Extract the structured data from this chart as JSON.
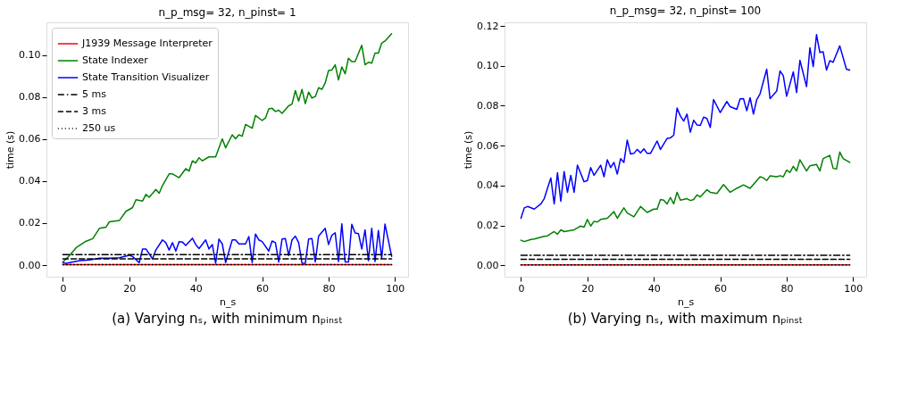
{
  "chart_data": [
    {
      "type": "line",
      "title": "n_p_msg= 32, n_pinst= 1",
      "xlabel": "n_s",
      "ylabel": "time (s)",
      "legend": "top left",
      "grid": false,
      "xlim": [
        -4.95,
        103.95
      ],
      "xticks": [
        0,
        20,
        40,
        60,
        80,
        100
      ],
      "ylim": [
        -0.0055,
        0.1155
      ],
      "yticks": [
        {
          "value": 0,
          "label": "0.00"
        },
        {
          "value": 0.02,
          "label": "0.02"
        },
        {
          "value": 0.04,
          "label": "0.04"
        },
        {
          "value": 0.06,
          "label": "0.06"
        },
        {
          "value": 0.08,
          "label": "0.08"
        },
        {
          "value": 0.1,
          "label": "0.10"
        }
      ],
      "annotations": [
        "(a) Varying nₛ, with minimum nₚᵢₙₛₜ"
      ],
      "series": [
        {
          "name": "J1939 Message Interpreter",
          "color": "#ff0000",
          "line_style": "solid",
          "x": [
            0,
            99
          ],
          "values": [
            0.0002,
            0.0002
          ]
        },
        {
          "name": "State Indexer",
          "color": "#008000",
          "line_style": "solid",
          "x": [
            0,
            2,
            4,
            7,
            9,
            11,
            13,
            14,
            17,
            19,
            21,
            22,
            24,
            25,
            26,
            28,
            29,
            30,
            32,
            33,
            35,
            37,
            38,
            39,
            40,
            41,
            42,
            44,
            46,
            48,
            49,
            51,
            52,
            53,
            54,
            55,
            57,
            58,
            60,
            61,
            62,
            63,
            64,
            65,
            66,
            68,
            69,
            70,
            71,
            72,
            73,
            74,
            75,
            76,
            77,
            78,
            79,
            80,
            81,
            82,
            83,
            84,
            85,
            86,
            87,
            88,
            90,
            91,
            92,
            93,
            94,
            95,
            96,
            97,
            99
          ],
          "values": [
            0.0015,
            0.0046,
            0.0083,
            0.0114,
            0.0126,
            0.0175,
            0.0181,
            0.0206,
            0.0212,
            0.0256,
            0.0274,
            0.0311,
            0.0305,
            0.0336,
            0.0323,
            0.036,
            0.0342,
            0.0379,
            0.0434,
            0.0434,
            0.0416,
            0.0459,
            0.0447,
            0.0496,
            0.0486,
            0.0511,
            0.0496,
            0.0515,
            0.0515,
            0.0601,
            0.0558,
            0.062,
            0.0601,
            0.062,
            0.0613,
            0.0669,
            0.0651,
            0.0712,
            0.0688,
            0.07,
            0.0743,
            0.0746,
            0.0731,
            0.0737,
            0.0722,
            0.0758,
            0.0766,
            0.083,
            0.078,
            0.0836,
            0.0768,
            0.0823,
            0.0795,
            0.0802,
            0.0844,
            0.0836,
            0.0867,
            0.0926,
            0.0928,
            0.0953,
            0.0881,
            0.0943,
            0.091,
            0.0984,
            0.0968,
            0.0968,
            0.1046,
            0.0953,
            0.0965,
            0.0961,
            0.1009,
            0.1009,
            0.1056,
            0.1066,
            0.1101
          ]
        },
        {
          "name": "State Transition Visualizer",
          "color": "#0000ff",
          "line_style": "solid",
          "x": [
            0,
            1,
            5,
            8,
            11,
            14,
            17,
            20,
            21,
            23,
            24,
            25,
            27,
            28,
            30,
            31,
            32,
            33,
            34,
            35,
            36,
            37,
            39,
            40,
            41,
            43,
            44,
            45,
            46,
            47,
            48,
            49,
            51,
            52,
            53,
            55,
            56,
            57,
            58,
            59,
            60,
            62,
            63,
            64,
            65,
            66,
            67,
            68,
            69,
            70,
            71,
            72,
            73,
            74,
            75,
            76,
            77,
            79,
            80,
            81,
            82,
            83,
            84,
            85,
            86,
            87,
            88,
            89,
            90,
            91,
            92,
            93,
            94,
            95,
            96,
            97,
            99
          ],
          "values": [
            0.0012,
            0.0009,
            0.0021,
            0.0025,
            0.0033,
            0.0033,
            0.0035,
            0.0047,
            0.0041,
            0.0012,
            0.0077,
            0.0077,
            0.003,
            0.0072,
            0.012,
            0.0107,
            0.0072,
            0.0107,
            0.0067,
            0.0112,
            0.011,
            0.0094,
            0.0128,
            0.0098,
            0.0079,
            0.012,
            0.0077,
            0.0098,
            0.0009,
            0.0124,
            0.0101,
            0.0012,
            0.012,
            0.012,
            0.0101,
            0.0101,
            0.0136,
            0.0012,
            0.0148,
            0.012,
            0.0112,
            0.0067,
            0.0115,
            0.0107,
            0.0015,
            0.0124,
            0.0126,
            0.0046,
            0.012,
            0.0138,
            0.0107,
            0.0009,
            0.0009,
            0.0124,
            0.0126,
            0.0015,
            0.0138,
            0.0175,
            0.0098,
            0.0142,
            0.0154,
            0.0017,
            0.0197,
            0.0015,
            0.0015,
            0.0194,
            0.0153,
            0.015,
            0.0077,
            0.0168,
            0.0021,
            0.0175,
            0.0017,
            0.0165,
            0.0033,
            0.0195,
            0.0042
          ]
        },
        {
          "name": "5 ms",
          "color": "#000000",
          "line_style": "dashdot",
          "x": [
            0,
            99
          ],
          "values": [
            0.005,
            0.005
          ]
        },
        {
          "name": "3 ms",
          "color": "#000000",
          "line_style": "dashed",
          "x": [
            0,
            99
          ],
          "values": [
            0.003,
            0.003
          ]
        },
        {
          "name": "250 us",
          "color": "#000000",
          "line_style": "dotted",
          "x": [
            0,
            99
          ],
          "values": [
            0.00025,
            0.00025
          ]
        }
      ]
    },
    {
      "type": "line",
      "title": "n_p_msg= 32, n_pinst= 100",
      "xlabel": "n_s",
      "ylabel": "time (s)",
      "legend": "top left",
      "grid": false,
      "xlim": [
        -4.95,
        103.95
      ],
      "xticks": [
        0,
        20,
        40,
        60,
        80,
        100
      ],
      "ylim": [
        -0.0057,
        0.1218
      ],
      "yticks": [
        {
          "value": 0,
          "label": "0.00"
        },
        {
          "value": 0.02,
          "label": "0.02"
        },
        {
          "value": 0.04,
          "label": "0.04"
        },
        {
          "value": 0.06,
          "label": "0.06"
        },
        {
          "value": 0.08,
          "label": "0.08"
        },
        {
          "value": 0.1,
          "label": "0.10"
        },
        {
          "value": 0.12,
          "label": "0.12"
        }
      ],
      "annotations": [
        "(b) Varying nₛ, with maximum nₚᵢₙₛₜ"
      ],
      "series": [
        {
          "name": "J1939 Message Interpreter",
          "color": "#ff0000",
          "line_style": "solid",
          "x": [
            0,
            99
          ],
          "values": [
            0.0002,
            0.0002
          ]
        },
        {
          "name": "State Indexer",
          "color": "#008000",
          "line_style": "solid",
          "x": [
            0,
            1,
            3,
            4,
            7,
            8,
            10,
            11,
            12,
            13,
            16,
            18,
            19,
            20,
            21,
            22,
            23,
            24,
            26,
            28,
            29,
            31,
            32,
            34,
            36,
            38,
            40,
            41,
            42,
            43,
            44,
            45,
            46,
            47,
            48,
            50,
            51,
            52,
            53,
            54,
            56,
            57,
            59,
            61,
            63,
            65,
            67,
            69,
            72,
            73,
            74,
            75,
            77,
            78,
            79,
            80,
            81,
            82,
            83,
            84,
            86,
            87,
            89,
            90,
            91,
            93,
            94,
            95,
            96,
            97,
            99
          ],
          "values": [
            0.0126,
            0.0119,
            0.013,
            0.0132,
            0.0145,
            0.0148,
            0.0169,
            0.0156,
            0.0178,
            0.0169,
            0.0178,
            0.0197,
            0.0191,
            0.023,
            0.0197,
            0.0221,
            0.0217,
            0.023,
            0.0236,
            0.0269,
            0.0236,
            0.0288,
            0.0262,
            0.0243,
            0.0295,
            0.0265,
            0.0282,
            0.0282,
            0.033,
            0.0327,
            0.0308,
            0.034,
            0.0308,
            0.0366,
            0.0327,
            0.0334,
            0.0325,
            0.033,
            0.0353,
            0.0343,
            0.0379,
            0.0366,
            0.036,
            0.0405,
            0.0366,
            0.0386,
            0.0403,
            0.0386,
            0.0444,
            0.0438,
            0.0425,
            0.0448,
            0.0444,
            0.0449,
            0.0444,
            0.0477,
            0.0466,
            0.0496,
            0.0473,
            0.0529,
            0.0473,
            0.0499,
            0.0506,
            0.0473,
            0.0535,
            0.0551,
            0.0486,
            0.0483,
            0.0568,
            0.0535,
            0.0516
          ]
        },
        {
          "name": "State Transition Visualizer",
          "color": "#0000ff",
          "line_style": "solid",
          "x": [
            0,
            1,
            2,
            4,
            6,
            7,
            9,
            10,
            11,
            12,
            13,
            14,
            15,
            16,
            17,
            19,
            20,
            21,
            22,
            24,
            25,
            26,
            27,
            28,
            29,
            30,
            31,
            32,
            33,
            34,
            35,
            36,
            37,
            38,
            39,
            41,
            42,
            44,
            45,
            46,
            47,
            48,
            49,
            50,
            51,
            52,
            53,
            54,
            55,
            56,
            57,
            58,
            60,
            62,
            63,
            65,
            66,
            67,
            68,
            69,
            70,
            71,
            72,
            74,
            75,
            77,
            78,
            79,
            80,
            82,
            83,
            84,
            86,
            87,
            88,
            89,
            90,
            91,
            92,
            93,
            94,
            96,
            98,
            99
          ],
          "values": [
            0.0236,
            0.0288,
            0.0295,
            0.0282,
            0.0308,
            0.0334,
            0.0438,
            0.0308,
            0.0464,
            0.0321,
            0.047,
            0.0366,
            0.0451,
            0.0366,
            0.0502,
            0.0419,
            0.0425,
            0.049,
            0.0451,
            0.0502,
            0.0444,
            0.0529,
            0.049,
            0.0516,
            0.0457,
            0.0535,
            0.0516,
            0.0628,
            0.0558,
            0.0561,
            0.0581,
            0.0564,
            0.0584,
            0.0561,
            0.0561,
            0.0623,
            0.0581,
            0.0636,
            0.0639,
            0.0652,
            0.0788,
            0.0749,
            0.0723,
            0.0758,
            0.0667,
            0.0727,
            0.0704,
            0.0701,
            0.0743,
            0.0736,
            0.0691,
            0.0831,
            0.0766,
            0.0821,
            0.0795,
            0.0782,
            0.0834,
            0.0836,
            0.0775,
            0.084,
            0.0758,
            0.0831,
            0.086,
            0.0983,
            0.0836,
            0.0873,
            0.0974,
            0.095,
            0.0847,
            0.097,
            0.0866,
            0.1028,
            0.0896,
            0.1091,
            0.0996,
            0.1156,
            0.1067,
            0.107,
            0.0979,
            0.1026,
            0.1018,
            0.11,
            0.0983,
            0.0979
          ]
        },
        {
          "name": "5 ms",
          "color": "#000000",
          "line_style": "dashdot",
          "x": [
            0,
            99
          ],
          "values": [
            0.005,
            0.005
          ]
        },
        {
          "name": "3 ms",
          "color": "#000000",
          "line_style": "dashed",
          "x": [
            0,
            99
          ],
          "values": [
            0.003,
            0.003
          ]
        },
        {
          "name": "250 us",
          "color": "#000000",
          "line_style": "dotted",
          "x": [
            0,
            99
          ],
          "values": [
            0.00025,
            0.00025
          ]
        }
      ]
    }
  ]
}
